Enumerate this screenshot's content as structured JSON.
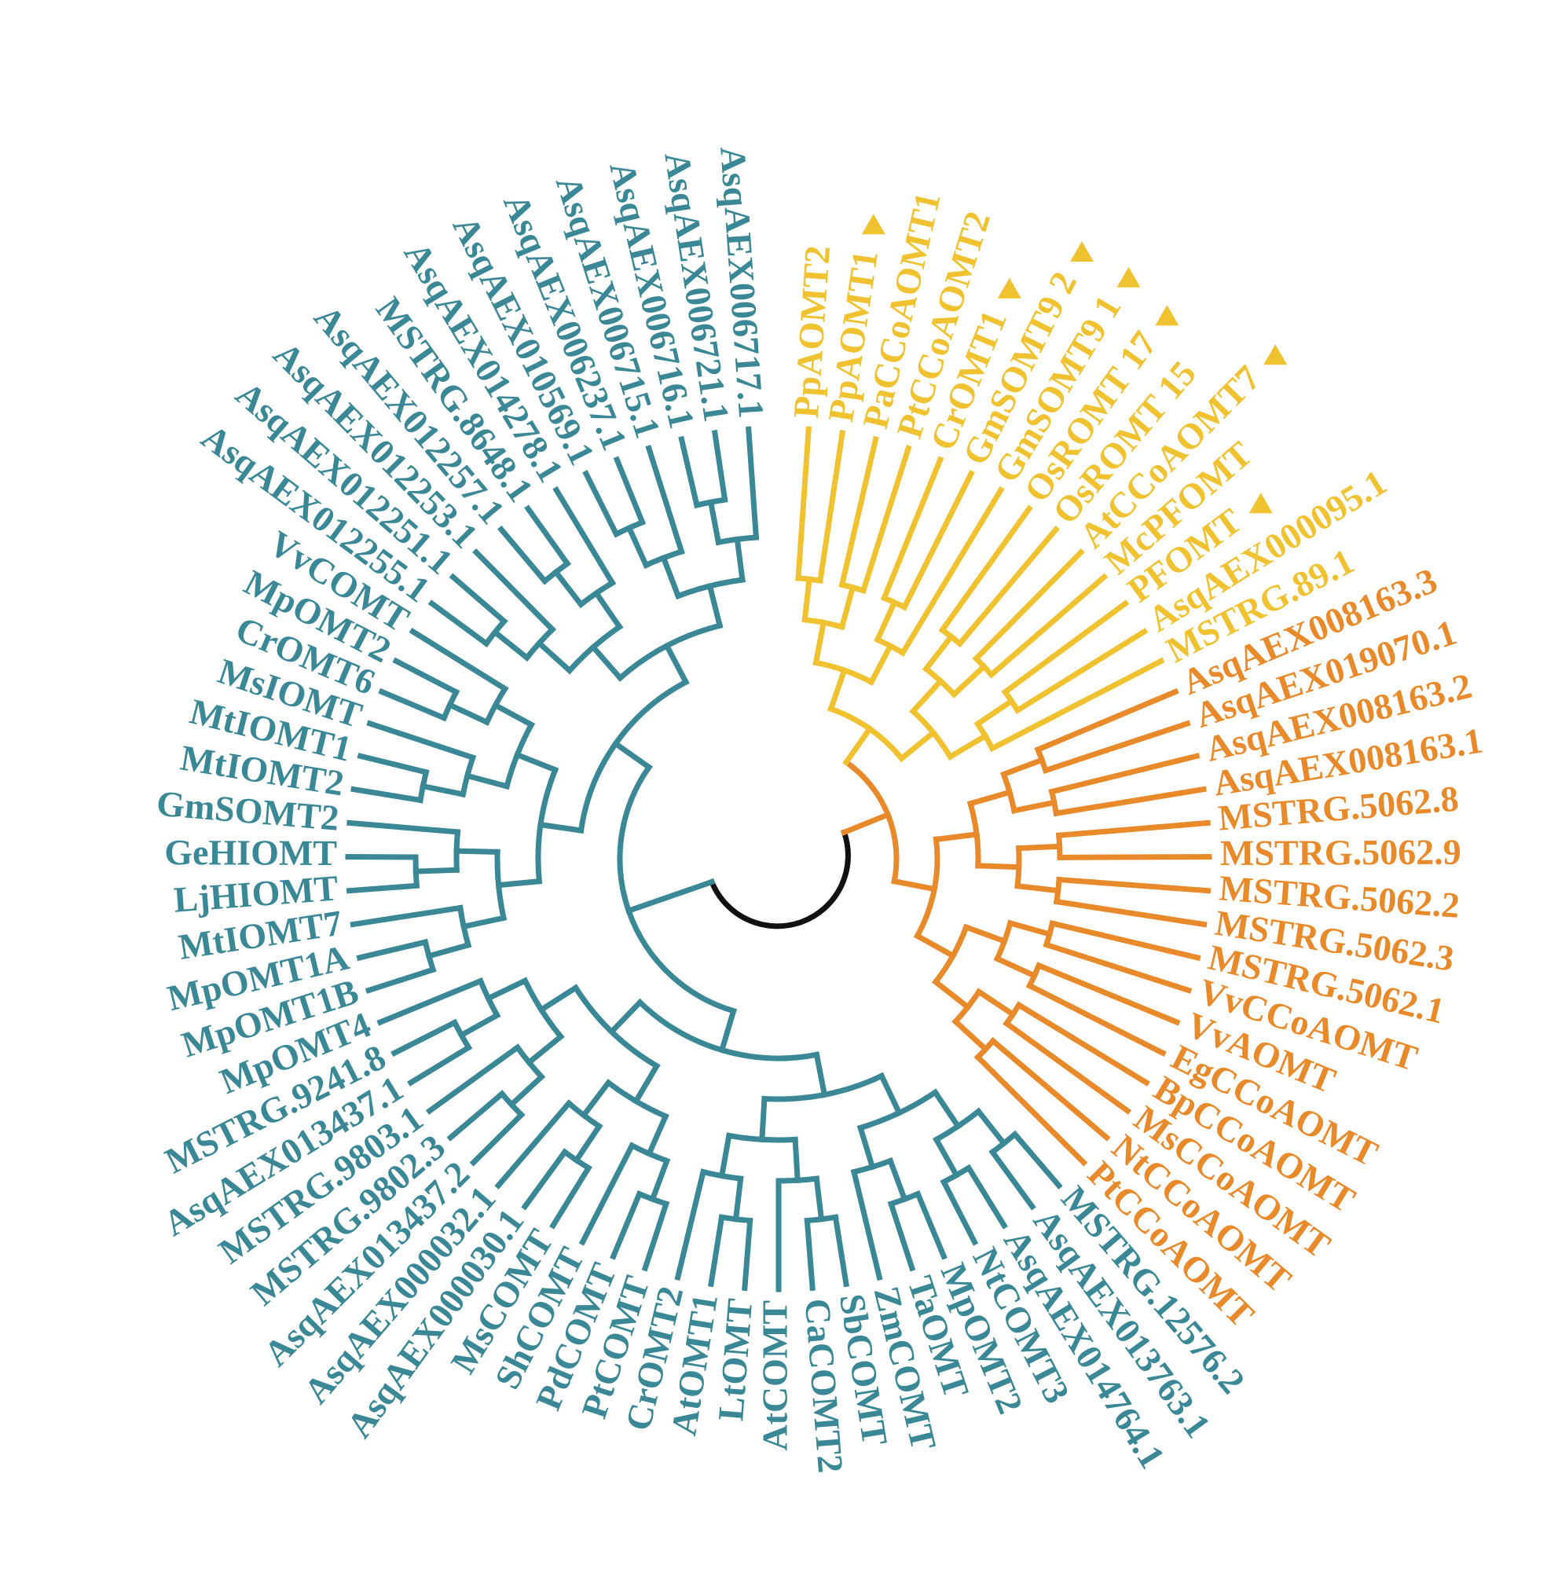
{
  "tree": {
    "groups": [
      {
        "color": "#f0c230",
        "leaves": [
          {
            "label": "PpAOMT2"
          },
          {
            "label": "PpAOMT1",
            "marked": true
          },
          {
            "label": "PaCCoAOMT1"
          },
          {
            "label": "PtCCoAOMT2"
          },
          {
            "label": "CrOMT1",
            "marked": true
          },
          {
            "label": "GmSOMT9 2",
            "marked": true
          },
          {
            "label": "GmSOMT9 1",
            "marked": true
          },
          {
            "label": "OsROMT 17",
            "marked": true
          },
          {
            "label": "OsROMT 15"
          },
          {
            "label": "AtCCoAOMT7",
            "marked": true
          },
          {
            "label": "McPFOMT"
          },
          {
            "label": "PFOMT",
            "marked": true
          },
          {
            "label": "AsqAEX000095.1"
          },
          {
            "label": "MSTRG.89.1"
          }
        ]
      },
      {
        "color": "#e8892a",
        "leaves": [
          {
            "label": "AsqAEX008163.3"
          },
          {
            "label": "AsqAEX019070.1"
          },
          {
            "label": "AsqAEX008163.2"
          },
          {
            "label": "AsqAEX008163.1"
          },
          {
            "label": "MSTRG.5062.8"
          },
          {
            "label": "MSTRG.5062.9"
          },
          {
            "label": "MSTRG.5062.2"
          },
          {
            "label": "MSTRG.5062.3"
          },
          {
            "label": "MSTRG.5062.1"
          },
          {
            "label": "VvCCoAOMT"
          },
          {
            "label": "VvAOMT"
          },
          {
            "label": "EgCCoAOMT"
          },
          {
            "label": "BpCCoAOMT"
          },
          {
            "label": "MsCCoAOMT"
          },
          {
            "label": "NtCCoAOMT"
          },
          {
            "label": "PtCCoAOMT"
          }
        ]
      },
      {
        "color": "#3a8795",
        "leaves": [
          {
            "label": "MSTRG.12576.2"
          },
          {
            "label": "AsqAEX013763.1"
          },
          {
            "label": "AsqAEX014764.1"
          },
          {
            "label": "NtCOMT3"
          },
          {
            "label": "MpOMT2"
          },
          {
            "label": "TaOMT"
          },
          {
            "label": "ZmCOMT"
          },
          {
            "label": "SbCOMT"
          },
          {
            "label": "CaCOMT2"
          },
          {
            "label": "AtCOMT"
          },
          {
            "label": "LtOMT"
          },
          {
            "label": "AtOMT1"
          },
          {
            "label": "CrOMT2"
          },
          {
            "label": "PtCOMT"
          },
          {
            "label": "PdCOMT"
          },
          {
            "label": "ShCOMT"
          },
          {
            "label": "MsCOMT"
          },
          {
            "label": "AsqAEX000030.1"
          },
          {
            "label": "AsqAEX000032.1"
          },
          {
            "label": "AsqAEX013437.2"
          },
          {
            "label": "MSTRG.9802.3"
          },
          {
            "label": "MSTRG.9803.1"
          },
          {
            "label": "AsqAEX013437.1"
          },
          {
            "label": "MSTRG.9241.8"
          },
          {
            "label": "MpOMT4"
          },
          {
            "label": "MpOMT1B"
          },
          {
            "label": "MpOMT1A"
          },
          {
            "label": "MtIOMT7"
          },
          {
            "label": "LjHIOMT"
          },
          {
            "label": "GeHIOMT"
          },
          {
            "label": "GmSOMT2"
          },
          {
            "label": "MtIOMT2"
          },
          {
            "label": "MtIOMT1"
          },
          {
            "label": "MsIOMT"
          },
          {
            "label": "CrOMT6"
          },
          {
            "label": "MpOMT2"
          },
          {
            "label": "VvCOMT"
          },
          {
            "label": "AsqAEX012255.1"
          },
          {
            "label": "AsqAEX012251.1"
          },
          {
            "label": "AsqAEX012253.1"
          },
          {
            "label": "AsqAEX012257.1"
          },
          {
            "label": "MSTRG.8648.1"
          },
          {
            "label": "AsqAEX014278.1"
          },
          {
            "label": "AsqAEX010569.1"
          },
          {
            "label": "AsqAEX006237.1"
          },
          {
            "label": "AsqAEX006715.1"
          },
          {
            "label": "AsqAEX006716.1"
          },
          {
            "label": "AsqAEX006721.1"
          },
          {
            "label": "AsqAEX006717.1"
          }
        ]
      }
    ]
  }
}
